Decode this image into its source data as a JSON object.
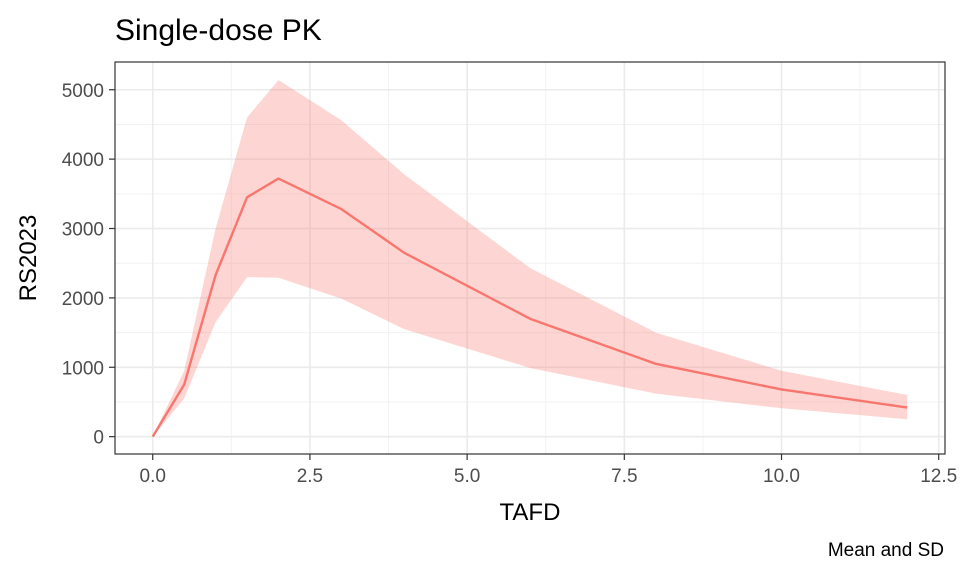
{
  "chart_data": {
    "type": "line",
    "title": "Single-dose PK",
    "xlabel": "TAFD",
    "ylabel": "RS2023",
    "caption": "Mean and SD",
    "xlim": [
      -0.6,
      12.6
    ],
    "ylim": [
      -250,
      5400
    ],
    "x_ticks": [
      0,
      2.5,
      5,
      7.5,
      10,
      12.5
    ],
    "x_tick_labels": [
      "0.0",
      "2.5",
      "5.0",
      "7.5",
      "10.0",
      "12.5"
    ],
    "y_ticks": [
      0,
      1000,
      2000,
      3000,
      4000,
      5000
    ],
    "y_tick_labels": [
      "0",
      "1000",
      "2000",
      "3000",
      "4000",
      "5000"
    ],
    "grid": true,
    "series": [
      {
        "x": [
          0,
          0.5,
          1,
          1.5,
          2,
          3,
          4,
          6,
          8,
          10,
          12
        ],
        "mean": [
          0,
          750,
          2330,
          3450,
          3720,
          3280,
          2650,
          1700,
          1050,
          680,
          420
        ],
        "lower": [
          0,
          550,
          1650,
          2300,
          2290,
          1990,
          1550,
          990,
          620,
          410,
          250
        ],
        "upper": [
          0,
          950,
          3000,
          4600,
          5140,
          4560,
          3780,
          2430,
          1500,
          950,
          600
        ],
        "color": "#f8766d",
        "ribbon_color": "#f8766d"
      }
    ]
  }
}
